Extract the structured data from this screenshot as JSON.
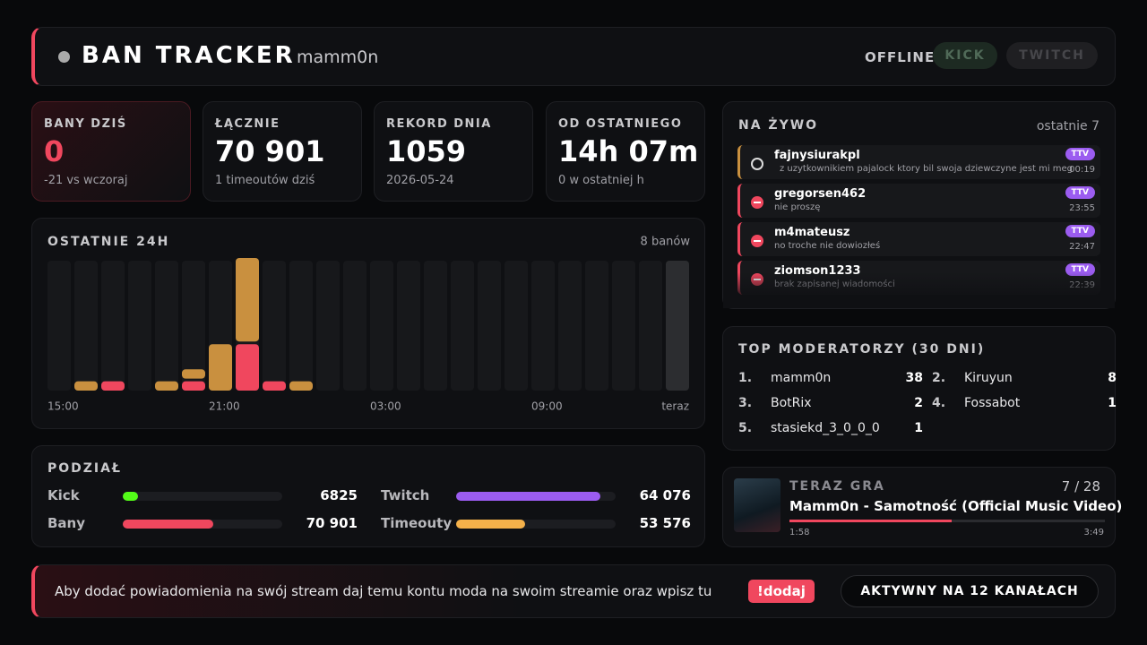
{
  "header": {
    "title": "BAN TRACKER",
    "channel": "mamm0n",
    "status": "OFFLINE",
    "buttons": [
      "KICK",
      "TWITCH"
    ]
  },
  "stats": [
    {
      "label": "BANY DZIŚ",
      "value": "0",
      "note": "-21 vs wczoraj"
    },
    {
      "label": "ŁĄCZNIE",
      "value": "70 901",
      "note": "1 timeoutów dziś"
    },
    {
      "label": "REKORD DNIA",
      "value": "1059",
      "note": "2026-05-24"
    },
    {
      "label": "OD OSTATNIEGO",
      "value": "14h 07m",
      "note": "0 w ostatniej h"
    }
  ],
  "chart_data": {
    "type": "bar",
    "stacked": true,
    "title": "OSTATNIE 24H",
    "subtitle": "8 banów",
    "categories": [
      "15:00",
      null,
      null,
      null,
      null,
      null,
      "21:00",
      null,
      null,
      null,
      null,
      null,
      "03:00",
      null,
      null,
      null,
      null,
      null,
      "09:00",
      null,
      null,
      null,
      null,
      "teraz"
    ],
    "series": [
      {
        "color": "#f0475e",
        "values": [
          0,
          0,
          1,
          0,
          0,
          1,
          0,
          5,
          1,
          0,
          0,
          0,
          0,
          0,
          0,
          0,
          0,
          0,
          0,
          0,
          0,
          0,
          0,
          0
        ]
      },
      {
        "color": "#c9903f",
        "values": [
          0,
          1,
          0,
          0,
          1,
          1,
          5,
          9,
          0,
          1,
          0,
          0,
          0,
          0,
          0,
          0,
          0,
          0,
          0,
          0,
          0,
          0,
          0,
          0
        ]
      }
    ],
    "ylim": [
      0,
      14
    ]
  },
  "split": {
    "title": "PODZIAŁ",
    "items": [
      {
        "name": "Kick",
        "value": {
          "value": 6825,
          "label": "6825"
        },
        "color": "#53fc18"
      },
      {
        "name": "Twitch",
        "value": {
          "value": 64076,
          "label": "64 076"
        },
        "color": "#9b5cf0"
      },
      {
        "name": "Bany",
        "value": {
          "value": 70901,
          "label": "70 901"
        },
        "color": "#f0475e"
      },
      {
        "name": "Timeouty",
        "value": {
          "value": 53576,
          "label": "53 576"
        },
        "color": "#f5b14a"
      }
    ]
  },
  "live": {
    "title": "NA ŻYWO",
    "note": "ostatnie 7",
    "items": [
      {
        "user": "fajnysiurakpl",
        "message": "z uzytkownikiem pajalock ktory bil swoja dziewczyne jest mi meg",
        "platform": "TTV",
        "time": "00:19"
      },
      {
        "user": "gregorsen462",
        "message": "nie proszę",
        "platform": "TTV",
        "time": "23:55"
      },
      {
        "user": "m4mateusz",
        "message": "no troche nie dowiozłeś",
        "platform": "TTV",
        "time": "22:47"
      },
      {
        "user": "ziomson1233",
        "message": "brak zapisanej wiadomości",
        "platform": "TTV",
        "time": "22:39"
      }
    ]
  },
  "moderators": {
    "title": "TOP MODERATORZY (30 DNI)",
    "items": [
      {
        "rank": "1.",
        "name": "mamm0n",
        "count": 38
      },
      {
        "rank": "2.",
        "name": "Kiruyun",
        "count": 8
      },
      {
        "rank": "3.",
        "name": "BotRix",
        "count": 2
      },
      {
        "rank": "4.",
        "name": "Fossabot",
        "count": 1
      },
      {
        "rank": "5.",
        "name": "stasiekd_3_0_0_0",
        "count": 1
      }
    ]
  },
  "now_playing": {
    "title": "TERAZ GRA",
    "position": "7 / 28",
    "song": "Mamm0n - Samotność (Official Music Video)",
    "elapsed": "1:58",
    "duration": "3:49"
  },
  "footer": {
    "text": "Aby dodać powiadomienia na swój stream daj temu kontu moda na swoim streamie oraz wpisz tu",
    "command": "!dodaj",
    "status": "AKTYWNY NA 12 KANAŁACH"
  }
}
